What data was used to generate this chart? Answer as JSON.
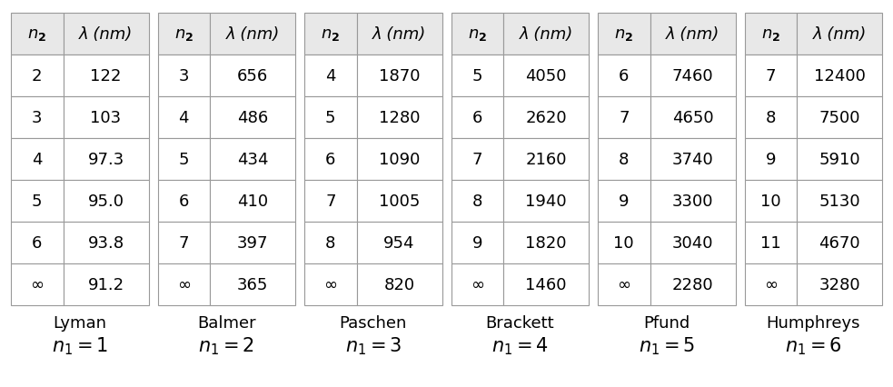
{
  "series": [
    {
      "name": "Lyman",
      "n1": 1,
      "rows": [
        {
          "n2": "2",
          "lam": "122"
        },
        {
          "n2": "3",
          "lam": "103"
        },
        {
          "n2": "4",
          "lam": "97.3"
        },
        {
          "n2": "5",
          "lam": "95.0"
        },
        {
          "n2": "6",
          "lam": "93.8"
        },
        {
          "n2": "∞",
          "lam": "91.2"
        }
      ]
    },
    {
      "name": "Balmer",
      "n1": 2,
      "rows": [
        {
          "n2": "3",
          "lam": "656"
        },
        {
          "n2": "4",
          "lam": "486"
        },
        {
          "n2": "5",
          "lam": "434"
        },
        {
          "n2": "6",
          "lam": "410"
        },
        {
          "n2": "7",
          "lam": "397"
        },
        {
          "n2": "∞",
          "lam": "365"
        }
      ]
    },
    {
      "name": "Paschen",
      "n1": 3,
      "rows": [
        {
          "n2": "4",
          "lam": "1870"
        },
        {
          "n2": "5",
          "lam": "1280"
        },
        {
          "n2": "6",
          "lam": "1090"
        },
        {
          "n2": "7",
          "lam": "1005"
        },
        {
          "n2": "8",
          "lam": "954"
        },
        {
          "n2": "∞",
          "lam": "820"
        }
      ]
    },
    {
      "name": "Brackett",
      "n1": 4,
      "rows": [
        {
          "n2": "5",
          "lam": "4050"
        },
        {
          "n2": "6",
          "lam": "2620"
        },
        {
          "n2": "7",
          "lam": "2160"
        },
        {
          "n2": "8",
          "lam": "1940"
        },
        {
          "n2": "9",
          "lam": "1820"
        },
        {
          "n2": "∞",
          "lam": "1460"
        }
      ]
    },
    {
      "name": "Pfund",
      "n1": 5,
      "rows": [
        {
          "n2": "6",
          "lam": "7460"
        },
        {
          "n2": "7",
          "lam": "4650"
        },
        {
          "n2": "8",
          "lam": "3740"
        },
        {
          "n2": "9",
          "lam": "3300"
        },
        {
          "n2": "10",
          "lam": "3040"
        },
        {
          "n2": "∞",
          "lam": "2280"
        }
      ]
    },
    {
      "name": "Humphreys",
      "n1": 6,
      "rows": [
        {
          "n2": "7",
          "lam": "12400"
        },
        {
          "n2": "8",
          "lam": "7500"
        },
        {
          "n2": "9",
          "lam": "5910"
        },
        {
          "n2": "10",
          "lam": "5130"
        },
        {
          "n2": "11",
          "lam": "4670"
        },
        {
          "n2": "∞",
          "lam": "3280"
        }
      ]
    }
  ],
  "header_n2": "n",
  "header_lam": "λ (nm)",
  "bg_color": "#ffffff",
  "header_bg": "#e8e8e8",
  "border_color": "#999999",
  "text_color": "#000000",
  "label_fontsize": 13,
  "n1_fontsize": 15,
  "cell_fontsize": 13,
  "header_fontsize": 13
}
